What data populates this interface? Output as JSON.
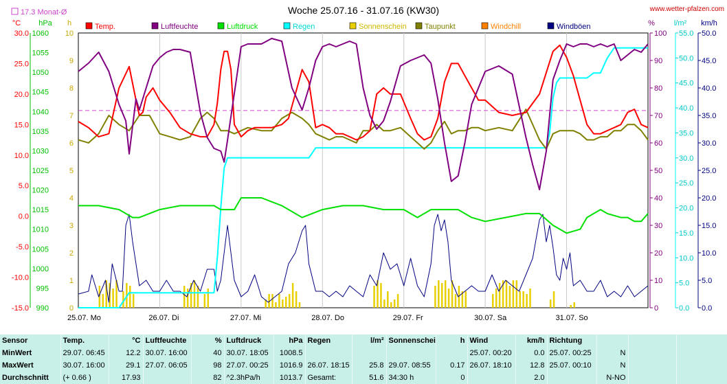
{
  "header": {
    "title": "Woche 25.07.16 - 31.07.16 (KW30)",
    "website": "www.wetter-pfalzen.com",
    "month_avg_label": "17.3 Monat-Ø"
  },
  "axes": {
    "temp_unit": "°C",
    "hpa_unit": "hPa",
    "h_unit": "h",
    "pct_unit": "%",
    "rain_unit": "l/m²",
    "wind_unit": "km/h",
    "temp_ticks": [
      "30.0",
      "25.0",
      "20.0",
      "15.0",
      "10.0",
      "5.0",
      "0.0",
      "-5.0",
      "-10.0",
      "-15.0"
    ],
    "hpa_ticks": [
      "1060",
      "1055",
      "1050",
      "1045",
      "1040",
      "1035",
      "1030",
      "1025",
      "1020",
      "1015",
      "1010",
      "1005",
      "1000",
      "995",
      "990"
    ],
    "h_ticks": [
      "10",
      "9",
      "8",
      "7",
      "6",
      "5",
      "4",
      "3",
      "2",
      "1",
      "0"
    ],
    "pct_ticks": [
      "100",
      "90",
      "80",
      "70",
      "60",
      "50",
      "40",
      "30",
      "20",
      "10",
      "0"
    ],
    "rain_ticks": [
      "55.0",
      "50.0",
      "45.0",
      "40.0",
      "35.0",
      "30.0",
      "25.0",
      "20.0",
      "15.0",
      "10.0",
      "5.0",
      "0.0"
    ],
    "wind_ticks": [
      "50.0",
      "45.0",
      "40.0",
      "35.0",
      "30.0",
      "25.0",
      "20.0",
      "15.0",
      "10.0",
      "5.0",
      "0.0"
    ],
    "day_labels": [
      "25.07. Mo",
      "26.07. Di",
      "27.07. Mi",
      "28.07. Do",
      "29.07. Fr",
      "30.07. Sa",
      "31.07. So"
    ]
  },
  "legend": [
    {
      "label": "Temp.",
      "color": "#ff0000"
    },
    {
      "label": "Luftfeuchte",
      "color": "#800080"
    },
    {
      "label": "Luftdruck",
      "color": "#00e000"
    },
    {
      "label": "Regen",
      "color": "#00ffff"
    },
    {
      "label": "Sonnenschein",
      "color": "#e8d000"
    },
    {
      "label": "Taupunkt",
      "color": "#808000"
    },
    {
      "label": "Windchill",
      "color": "#ff8000"
    },
    {
      "label": "Windböen",
      "color": "#000080"
    }
  ],
  "colors": {
    "temp": "#ff0000",
    "humidity": "#800080",
    "pressure": "#00e000",
    "rain": "#00ffff",
    "sun": "#e8d000",
    "dewpoint": "#808000",
    "wind": "#000080",
    "monthavg": "#cc44cc"
  },
  "chart_data": {
    "type": "line",
    "title": "Woche 25.07.16 - 31.07.16 (KW30)",
    "x_range_hours": [
      0,
      168
    ],
    "month_avg_temp": 17.3,
    "series": [
      {
        "name": "Temp.",
        "unit": "°C",
        "axis": "temp",
        "x": [
          0,
          3,
          6,
          9,
          12,
          15,
          17,
          18,
          19,
          20,
          22,
          24,
          27,
          30,
          33,
          36,
          38,
          40,
          41,
          42,
          43,
          44,
          45,
          46,
          48,
          50,
          52,
          54,
          57,
          60,
          62,
          64,
          66,
          68,
          70,
          72,
          74,
          76,
          78,
          80,
          82,
          84,
          86,
          88,
          90,
          92,
          95,
          98,
          100,
          102,
          104,
          106,
          108,
          110,
          112,
          114,
          116,
          118,
          120,
          124,
          128,
          132,
          136,
          140,
          142,
          144,
          146,
          148,
          150,
          152,
          154,
          156,
          158,
          160,
          162,
          164,
          166,
          168
        ],
        "y": [
          15.5,
          14.5,
          13,
          13.5,
          21,
          24.5,
          19,
          16.5,
          17,
          19.5,
          21,
          19,
          17,
          14.5,
          13.5,
          13,
          13,
          15,
          18.5,
          24,
          27,
          27,
          24,
          15,
          13,
          14,
          14.5,
          14.5,
          14.5,
          15,
          16,
          20,
          24,
          22,
          14.5,
          15,
          14.5,
          13.5,
          13.5,
          13,
          12.5,
          13,
          14,
          20,
          21,
          20,
          20,
          16,
          13.5,
          12.5,
          13,
          16,
          22,
          25,
          25,
          23,
          21,
          19,
          19,
          17,
          16.5,
          17,
          20,
          27,
          28,
          26,
          23,
          19,
          15,
          13.5,
          13.5,
          14,
          14.5,
          15,
          17,
          17.5,
          15,
          14.5
        ]
      },
      {
        "name": "Luftfeuchte",
        "unit": "%",
        "axis": "pct",
        "x": [
          0,
          3,
          6,
          9,
          12,
          14,
          15,
          17,
          18,
          20,
          22,
          24,
          26,
          28,
          30,
          33,
          36,
          38,
          40,
          42,
          43,
          44,
          46,
          48,
          50,
          52,
          54,
          57,
          60,
          63,
          66,
          68,
          70,
          72,
          74,
          76,
          78,
          80,
          82,
          84,
          86,
          88,
          90,
          92,
          95,
          98,
          100,
          102,
          104,
          106,
          108,
          110,
          112,
          114,
          116,
          120,
          124,
          128,
          132,
          134,
          136,
          138,
          140,
          142,
          144,
          146,
          148,
          150,
          152,
          154,
          156,
          158,
          160,
          162,
          164,
          166,
          168
        ],
        "y": [
          86,
          89,
          93,
          86,
          74,
          68,
          56,
          76,
          72,
          80,
          88,
          91,
          93,
          94,
          94,
          93,
          71,
          62,
          58,
          57,
          53,
          61,
          78,
          95,
          96,
          96,
          96,
          98,
          97,
          80,
          72,
          80,
          90,
          95,
          96,
          95,
          96,
          97,
          96,
          80,
          70,
          65,
          68,
          75,
          88,
          90,
          91,
          92,
          89,
          76,
          60,
          46,
          48,
          60,
          74,
          86,
          88,
          85,
          62,
          52,
          43,
          57,
          83,
          90,
          96,
          95,
          96,
          96,
          95,
          96,
          95,
          96,
          90,
          92,
          94,
          93,
          96
        ]
      },
      {
        "name": "Luftdruck",
        "unit": "hPa",
        "axis": "hpa",
        "x": [
          0,
          6,
          12,
          16,
          18,
          24,
          30,
          36,
          40,
          42,
          44,
          46,
          48,
          54,
          60,
          66,
          72,
          78,
          84,
          90,
          96,
          100,
          104,
          108,
          112,
          116,
          120,
          126,
          132,
          136,
          140,
          144,
          148,
          150,
          152,
          154,
          156,
          160,
          162,
          164,
          166,
          168
        ],
        "y": [
          1016,
          1016,
          1015,
          1013,
          1013,
          1015,
          1016,
          1016,
          1016,
          1015,
          1015,
          1015,
          1018,
          1018,
          1016,
          1013,
          1015,
          1016,
          1016,
          1015,
          1015,
          1013,
          1015,
          1015,
          1015,
          1013,
          1012,
          1013,
          1014,
          1014,
          1011,
          1009,
          1010,
          1013,
          1014,
          1015,
          1014,
          1013,
          1013,
          1012,
          1012,
          1014
        ]
      },
      {
        "name": "Regen",
        "unit": "l/m²",
        "axis": "rain",
        "x": [
          0,
          12,
          13,
          14,
          15,
          16,
          19,
          24,
          30,
          36,
          40,
          41,
          42,
          43,
          44,
          50,
          54,
          56,
          60,
          64,
          68,
          70,
          72,
          80,
          90,
          100,
          110,
          120,
          132,
          138,
          139,
          140,
          141,
          142,
          150,
          152,
          154,
          156,
          158,
          160,
          164,
          168
        ],
        "y": [
          0,
          0,
          1,
          2,
          3,
          3,
          3,
          3,
          3,
          3,
          3,
          10,
          20,
          28,
          30,
          30,
          30,
          30,
          30,
          30,
          30,
          32,
          32,
          32,
          32,
          32,
          32,
          32,
          32,
          32,
          35,
          42,
          45,
          46,
          46,
          47,
          47,
          50,
          52,
          52,
          52,
          52
        ]
      },
      {
        "name": "Taupunkt",
        "unit": "°C",
        "axis": "temp",
        "x": [
          0,
          3,
          6,
          9,
          12,
          15,
          18,
          21,
          24,
          27,
          30,
          33,
          36,
          38,
          40,
          42,
          44,
          46,
          48,
          50,
          54,
          57,
          60,
          63,
          66,
          68,
          70,
          72,
          74,
          76,
          78,
          80,
          82,
          84,
          86,
          88,
          90,
          92,
          95,
          98,
          100,
          102,
          104,
          106,
          108,
          110,
          112,
          114,
          116,
          118,
          120,
          124,
          128,
          132,
          136,
          138,
          140,
          142,
          144,
          146,
          148,
          150,
          152,
          154,
          156,
          158,
          160,
          162,
          164,
          166,
          168
        ],
        "y": [
          12.5,
          12,
          13.5,
          16.5,
          15,
          14,
          16.5,
          16.5,
          13.5,
          13,
          12.5,
          13,
          16,
          17,
          16,
          14,
          14,
          13.5,
          14,
          14.5,
          14,
          14,
          16,
          17,
          16,
          15,
          13.5,
          13,
          12.5,
          13,
          13,
          12.5,
          12,
          14,
          14,
          15,
          14,
          14,
          14.5,
          13,
          12,
          11,
          12,
          14,
          15.5,
          13.5,
          14,
          14,
          14.5,
          14.5,
          14,
          14.5,
          14,
          17.5,
          12.5,
          11,
          13.5,
          14,
          14,
          14,
          13.5,
          12.5,
          12.5,
          13,
          13,
          14,
          14,
          15,
          15,
          14,
          12.5
        ]
      },
      {
        "name": "Windböen",
        "unit": "km/h",
        "axis": "wind",
        "x": [
          0,
          3,
          4,
          6,
          8,
          9,
          10,
          12,
          13,
          14,
          15,
          16,
          18,
          20,
          22,
          24,
          26,
          28,
          30,
          32,
          34,
          36,
          38,
          40,
          41,
          42,
          43,
          44,
          46,
          48,
          50,
          52,
          54,
          56,
          58,
          60,
          62,
          64,
          66,
          67,
          68,
          70,
          72,
          74,
          76,
          78,
          80,
          82,
          84,
          86,
          88,
          90,
          92,
          94,
          96,
          98,
          100,
          102,
          104,
          105,
          106,
          107,
          108,
          109,
          110,
          112,
          114,
          116,
          118,
          120,
          122,
          124,
          126,
          128,
          130,
          132,
          134,
          136,
          137,
          138,
          139,
          140,
          141,
          142,
          143,
          144,
          145,
          146,
          148,
          150,
          152,
          154,
          156,
          158,
          160,
          162,
          164,
          166,
          168
        ],
        "y": [
          2.5,
          3,
          6,
          2,
          5,
          1,
          8,
          3,
          3,
          15,
          17,
          12,
          4,
          5,
          3,
          3,
          5,
          3,
          3,
          2,
          5,
          3,
          7,
          7,
          3,
          5,
          10,
          15,
          5,
          2,
          3,
          6,
          2,
          1,
          2,
          3,
          8,
          10,
          14,
          15,
          8,
          3,
          3,
          2,
          3,
          2,
          4,
          3,
          2,
          6,
          4,
          10,
          7,
          8,
          4,
          9,
          4,
          2,
          8,
          15,
          17,
          14,
          16,
          12,
          5,
          2,
          3,
          4,
          3,
          3,
          6,
          3,
          5,
          4,
          3,
          6,
          9,
          16,
          17,
          12,
          15,
          11,
          6,
          5,
          9,
          7,
          10,
          4,
          5,
          3,
          3,
          5,
          2,
          3,
          2,
          4,
          2,
          3,
          4
        ]
      },
      {
        "name": "Sonnenschein",
        "unit": "h",
        "axis": "h",
        "bar_x": [
          6,
          7,
          8,
          9,
          10,
          11,
          13,
          14,
          15,
          16,
          31,
          32,
          33,
          34,
          35,
          37,
          38,
          55,
          56,
          57,
          58,
          59,
          60,
          61,
          62,
          63,
          64,
          65,
          87,
          88,
          89,
          90,
          91,
          92,
          93,
          94,
          105,
          106,
          107,
          108,
          109,
          110,
          111,
          112,
          113,
          114,
          122,
          123,
          124,
          125,
          126,
          127,
          128,
          129,
          130,
          131,
          132,
          133,
          139,
          140,
          145,
          146
        ],
        "bar_h": [
          0.8,
          0.5,
          1.0,
          0.9,
          0.7,
          1.0,
          0.6,
          0.9,
          0.8,
          0.5,
          0.8,
          0.7,
          0.9,
          1.0,
          0.8,
          0.5,
          0.7,
          0.3,
          0.5,
          0.5,
          0.2,
          0.5,
          0.3,
          0.4,
          0.5,
          0.9,
          0.6,
          0.2,
          0.8,
          1.0,
          0.9,
          0.3,
          0.6,
          0.2,
          0.3,
          0.5,
          0.8,
          1.0,
          0.9,
          1.0,
          0.7,
          1.0,
          0.5,
          0.8,
          0.6,
          0.6,
          0.5,
          0.7,
          0.9,
          1.0,
          1.0,
          0.8,
          1.0,
          1.0,
          0.6,
          0.6,
          0.5,
          0.7,
          0.3,
          0.6,
          0.1,
          0.2
        ]
      }
    ]
  },
  "stats": {
    "headers": [
      [
        "Sensor",
        ""
      ],
      [
        "Temp.",
        "°C"
      ],
      [
        "Luftfeuchte",
        "%"
      ],
      [
        "Luftdruck",
        "hPa"
      ],
      [
        "Regen",
        "l/m²"
      ],
      [
        "Sonnenschein",
        "h"
      ],
      [
        "Wind",
        "km/h"
      ],
      [
        "Richtung",
        ""
      ]
    ],
    "rows": [
      {
        "label": "MinWert",
        "cells": [
          [
            "29.07.  06:45",
            "12.2"
          ],
          [
            "30.07.  16:00",
            "40"
          ],
          [
            "30.07.  18:05",
            "1008.5"
          ],
          [
            "",
            ""
          ],
          [
            "",
            ""
          ],
          [
            "25.07.  00:20",
            "0.0"
          ],
          [
            "25.07.  00:25",
            "N"
          ]
        ]
      },
      {
        "label": "MaxWert",
        "cells": [
          [
            "30.07.  16:00",
            "29.1"
          ],
          [
            "27.07.  06:05",
            "98"
          ],
          [
            "27.07.  00:25",
            "1016.9"
          ],
          [
            "26.07.  18:15",
            "25.8"
          ],
          [
            "29.07.  08:55",
            "0.17"
          ],
          [
            "26.07.  18:10",
            "12.8"
          ],
          [
            "25.07.  00:10",
            "N"
          ]
        ]
      },
      {
        "label": "Durchschnitt",
        "cells": [
          [
            "(+ 0.66 )",
            "17.93"
          ],
          [
            "",
            "82"
          ],
          [
            "^2.3hPa/h",
            "1013.7"
          ],
          [
            "Gesamt:",
            "51.6"
          ],
          [
            "34:30 h",
            "0"
          ],
          [
            "",
            "2.0"
          ],
          [
            "",
            "N-NO"
          ]
        ]
      }
    ]
  }
}
